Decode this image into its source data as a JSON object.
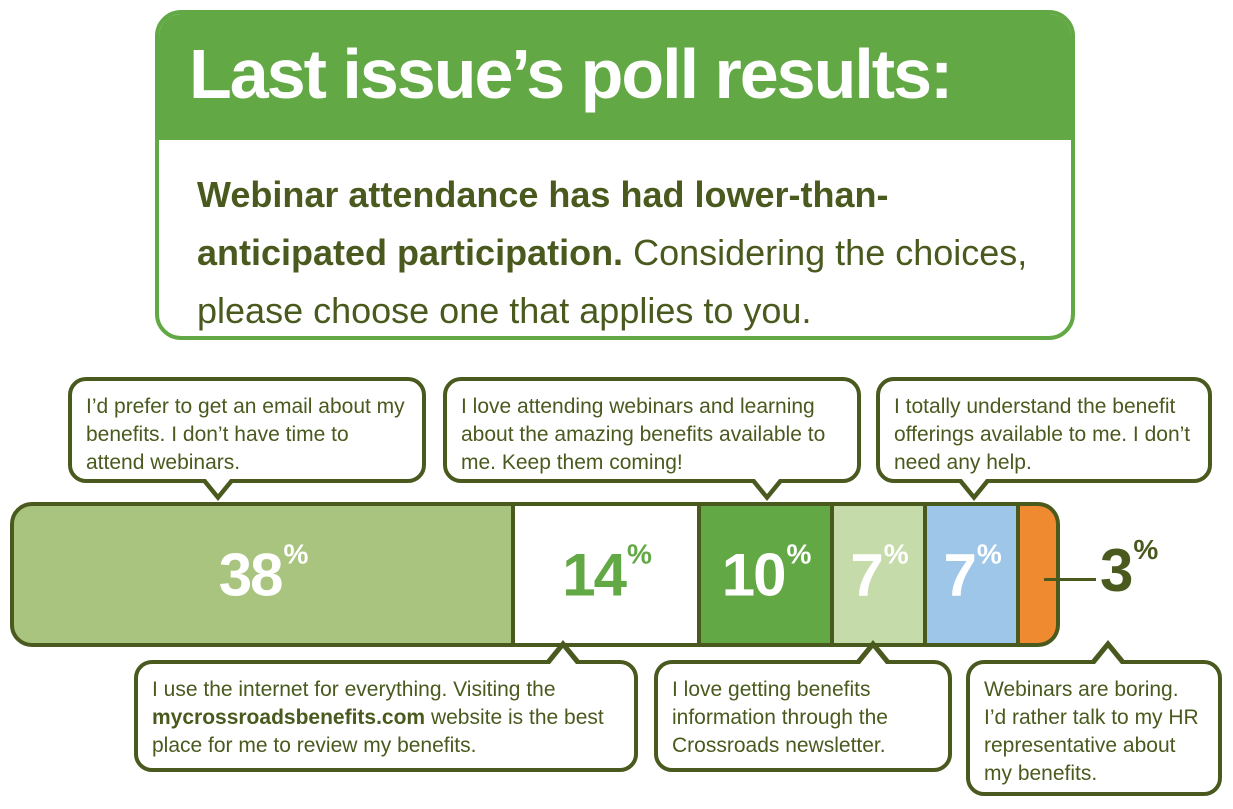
{
  "header": {
    "title": "Last issue’s poll results:",
    "question_bold": "Webinar attendance has had lower-than-anticipated participation.",
    "question_plain": " Considering the choices, please choose one that applies to you."
  },
  "colors": {
    "dark_olive": "#4a5a1e",
    "green": "#62a844",
    "sage": "#a9c47f",
    "white": "#ffffff",
    "light_sage": "#c5dbaa",
    "light_blue": "#9dc6e8",
    "orange": "#f08a30"
  },
  "chart_data": {
    "type": "bar",
    "orientation": "stacked-horizontal",
    "unit": "%",
    "categories": [
      "I’d prefer to get an email about my benefits. I don’t have time to attend webinars.",
      "I use the internet for everything. Visiting the mycrossroadsbenefits.com website is the best place for me to review my benefits.",
      "I love attending webinars and learning about the amazing benefits available to me. Keep them coming!",
      "I love getting benefits information through the Crossroads newsletter.",
      "I totally understand the benefit offerings available to me. I don’t need any help.",
      "Webinars are boring. I’d rather talk to my HR representative about my benefits."
    ],
    "values": [
      38,
      14,
      10,
      7,
      7,
      3
    ],
    "labels": [
      "38",
      "14",
      "10",
      "7",
      "7",
      "3"
    ],
    "colors": [
      "#a9c47f",
      "#ffffff",
      "#62a844",
      "#c5dbaa",
      "#9dc6e8",
      "#f08a30"
    ],
    "label_colors": [
      "#ffffff",
      "#62a844",
      "#ffffff",
      "#ffffff",
      "#ffffff",
      "#4a5a1e"
    ],
    "percent_sign": "%"
  },
  "callouts": {
    "email": "I’d prefer to get an email about my benefits. I don’t have time to attend webinars.",
    "webinars": "I love attending webinars and learning about the amazing benefits available to me. Keep them coming!",
    "understand": "I totally understand the benefit offerings available to me. I don’t need any help.",
    "internet_before": "I use the internet for everything. Visiting the ",
    "internet_link": "mycrossroadsbenefits.com",
    "internet_after": " website is the best place for me to review my benefits.",
    "newsletter": "I love getting benefits information through the Crossroads newsletter.",
    "boring": "Webinars are boring. I’d rather talk to my HR representative about my benefits."
  }
}
